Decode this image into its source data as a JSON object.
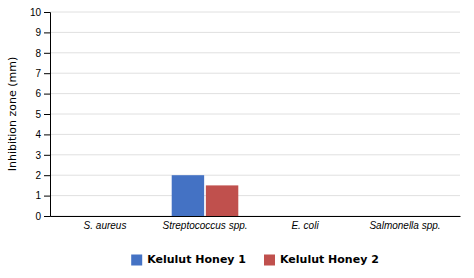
{
  "chart_data": {
    "type": "bar",
    "categories": [
      "S. aureus",
      "Streptococcus spp.",
      "E. coli",
      "Salmonella spp."
    ],
    "series": [
      {
        "name": "Kelulut Honey 1",
        "color": "#4472C4",
        "values": [
          0,
          2.0,
          0,
          0
        ]
      },
      {
        "name": "Kelulut Honey 2",
        "color": "#C0504D",
        "values": [
          0,
          1.5,
          0,
          0
        ]
      }
    ],
    "ylabel": "Inhibition zone (mm)",
    "ylim": [
      0,
      10
    ],
    "yticks": [
      0,
      1,
      2,
      3,
      4,
      5,
      6,
      7,
      8,
      9,
      10
    ],
    "grid": true,
    "legend": "bottom"
  }
}
